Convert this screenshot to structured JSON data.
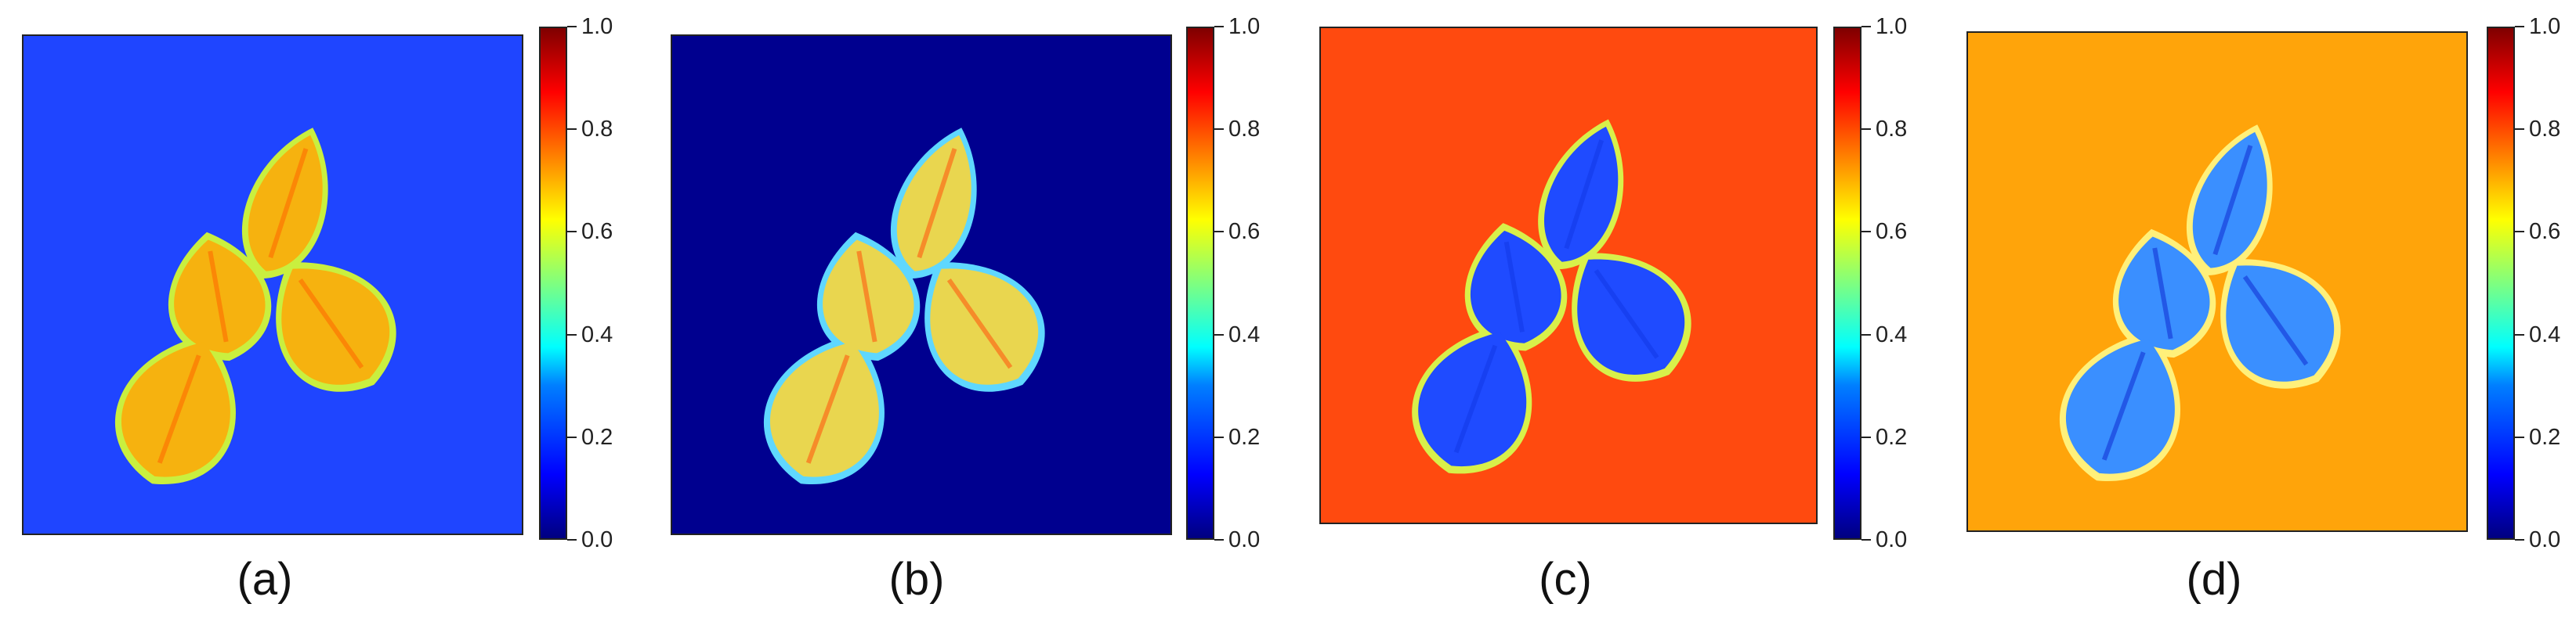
{
  "panels": [
    {
      "caption": "(a)",
      "colors": {
        "background": "#1f45ff",
        "leaf": "#f6b20f",
        "leaf_edge": "#c9ef3f",
        "vein": "#ff6a00"
      },
      "colorbar_ticks": [
        "0.0",
        "0.2",
        "0.4",
        "0.6",
        "0.8",
        "1.0"
      ]
    },
    {
      "caption": "(b)",
      "colors": {
        "background": "#00008f",
        "leaf": "#e9d64f",
        "leaf_edge": "#5fd7ff",
        "vein": "#ff5a10"
      },
      "colorbar_ticks": [
        "0.0",
        "0.2",
        "0.4",
        "0.6",
        "0.8",
        "1.0"
      ]
    },
    {
      "caption": "(c)",
      "colors": {
        "background": "#ff4a0f",
        "leaf": "#1f4bff",
        "leaf_edge": "#d8f04a",
        "vein": "#1238e8"
      },
      "colorbar_ticks": [
        "0.0",
        "0.2",
        "0.4",
        "0.6",
        "0.8",
        "1.0"
      ]
    },
    {
      "caption": "(d)",
      "colors": {
        "background": "#ffa40a",
        "leaf": "#3a8fff",
        "leaf_edge": "#fff07a",
        "vein": "#1233d6"
      },
      "colorbar_ticks": [
        "0.0",
        "0.2",
        "0.4",
        "0.6",
        "0.8",
        "1.0"
      ]
    }
  ],
  "colorbar_range": [
    0.0,
    1.0
  ]
}
